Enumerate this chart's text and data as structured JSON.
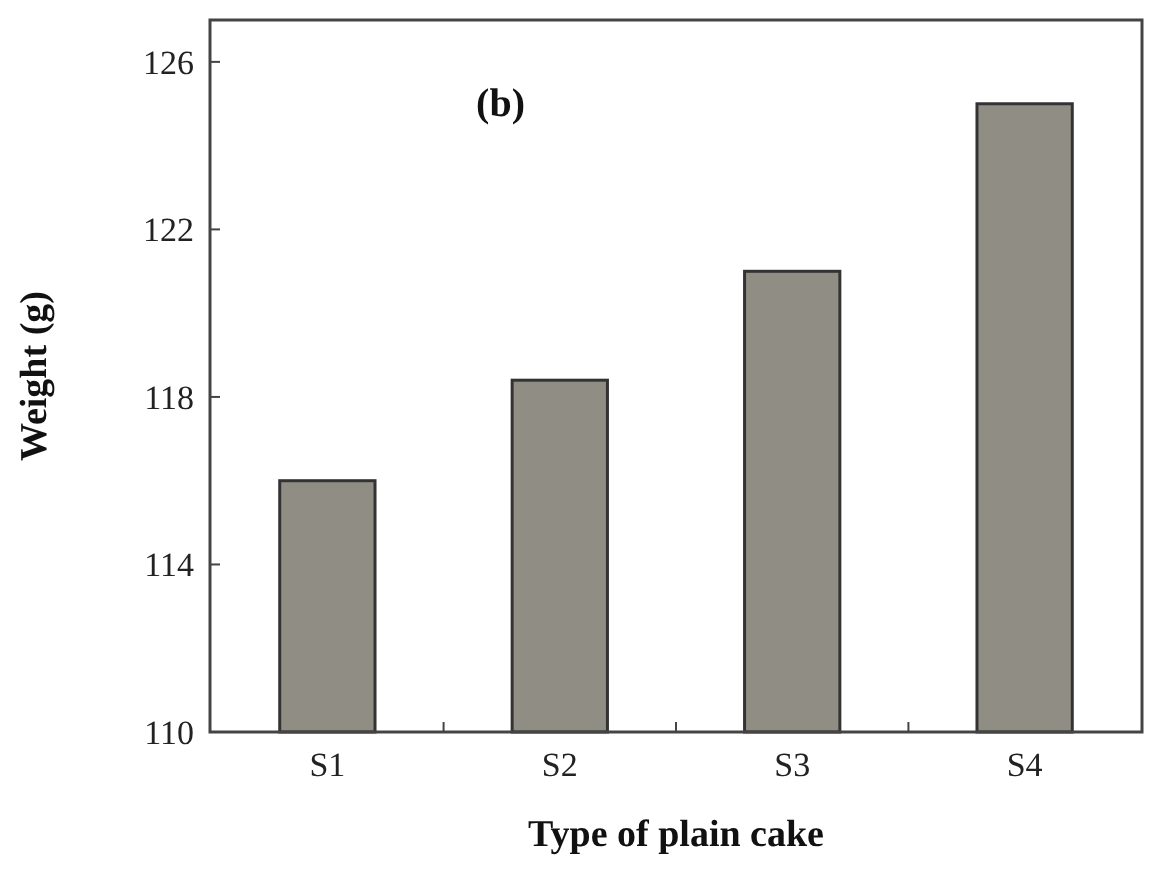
{
  "chart_data": {
    "type": "bar",
    "xlabel": "Type of plain cake",
    "ylabel": "Weight (g)",
    "annotations": [
      "(b)"
    ],
    "categories": [
      "S1",
      "S2",
      "S3",
      "S4"
    ],
    "values": [
      116,
      118.4,
      121,
      125
    ],
    "color": "#8f8d84",
    "ylim": [
      110,
      127
    ],
    "yticks": [
      110,
      114,
      118,
      122,
      126
    ],
    "grid": false
  }
}
